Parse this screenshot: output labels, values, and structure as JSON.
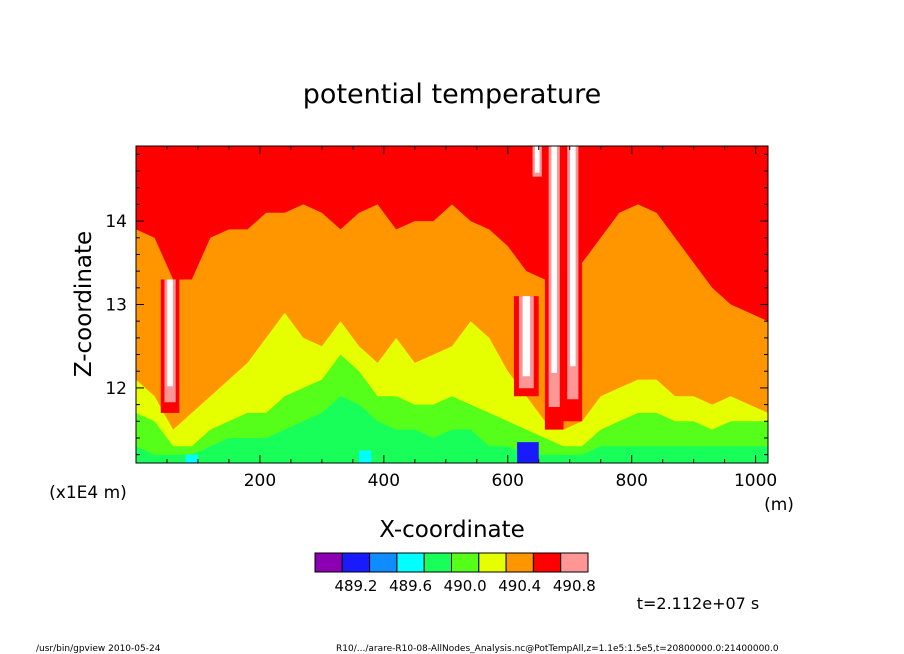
{
  "chart_data": {
    "type": "heatmap",
    "title": "potential temperature",
    "xlabel": "X-coordinate",
    "ylabel": "Z-coordinate",
    "x_unit": "(m)",
    "y_unit": "(x1E4 m)",
    "xlim": [
      0,
      1020
    ],
    "ylim": [
      11.1,
      14.9
    ],
    "x_ticks": [
      200,
      400,
      600,
      800,
      1000
    ],
    "y_ticks": [
      12,
      13,
      14
    ],
    "colorbar": {
      "colors": [
        "#8c00b4",
        "#1a1aff",
        "#0f8cff",
        "#00ffff",
        "#19ff5a",
        "#55ff19",
        "#e6ff00",
        "#ff9600",
        "#ff0000",
        "#ff9696"
      ],
      "tick_labels": [
        "489.2",
        "489.6",
        "490.0",
        "490.4",
        "490.8"
      ],
      "tick_values": [
        489.2,
        489.6,
        490.0,
        490.4,
        490.8
      ]
    },
    "boundary_samples_x": [
      0,
      30,
      60,
      90,
      120,
      150,
      180,
      210,
      240,
      270,
      300,
      330,
      360,
      390,
      420,
      450,
      480,
      510,
      540,
      570,
      600,
      630,
      660,
      690,
      720,
      750,
      780,
      810,
      840,
      870,
      900,
      930,
      960,
      990,
      1020
    ],
    "red_to_orange_z": [
      13.9,
      13.8,
      13.3,
      13.3,
      13.8,
      13.9,
      13.9,
      14.1,
      14.1,
      14.2,
      14.1,
      13.9,
      14.1,
      14.2,
      13.9,
      14.0,
      14.0,
      14.2,
      14.0,
      13.9,
      13.7,
      13.4,
      13.3,
      13.3,
      13.5,
      13.8,
      14.1,
      14.2,
      14.1,
      13.8,
      13.5,
      13.2,
      13.0,
      12.9,
      12.8
    ],
    "orange_to_yellow_z": [
      12.1,
      11.9,
      11.5,
      11.7,
      11.9,
      12.1,
      12.3,
      12.6,
      12.9,
      12.6,
      12.5,
      12.8,
      12.5,
      12.3,
      12.6,
      12.3,
      12.4,
      12.5,
      12.8,
      12.6,
      12.2,
      11.9,
      11.6,
      11.5,
      11.6,
      11.9,
      12.0,
      12.1,
      12.1,
      11.9,
      11.9,
      11.8,
      11.9,
      11.8,
      11.7
    ],
    "yellow_to_green_z": [
      11.7,
      11.6,
      11.3,
      11.3,
      11.5,
      11.6,
      11.7,
      11.7,
      11.9,
      12.0,
      12.1,
      12.4,
      12.2,
      11.9,
      11.9,
      11.8,
      11.8,
      11.9,
      11.8,
      11.7,
      11.6,
      11.5,
      11.4,
      11.3,
      11.3,
      11.5,
      11.6,
      11.7,
      11.7,
      11.6,
      11.6,
      11.5,
      11.6,
      11.6,
      11.6
    ],
    "green_to_lightgreen_z": [
      11.3,
      11.2,
      11.2,
      11.2,
      11.3,
      11.4,
      11.4,
      11.4,
      11.5,
      11.6,
      11.7,
      11.9,
      11.8,
      11.6,
      11.5,
      11.5,
      11.4,
      11.5,
      11.5,
      11.3,
      11.3,
      11.2,
      11.2,
      11.2,
      11.2,
      11.3,
      11.3,
      11.3,
      11.3,
      11.3,
      11.3,
      11.3,
      11.3,
      11.3,
      11.3
    ],
    "warm_columns": [
      {
        "x": [
          40,
          70
        ],
        "z": [
          11.7,
          13.3
        ]
      },
      {
        "x": [
          610,
          650
        ],
        "z": [
          11.9,
          13.1
        ]
      },
      {
        "x": [
          660,
          690
        ],
        "z": [
          11.5,
          14.9
        ]
      },
      {
        "x": [
          690,
          720
        ],
        "z": [
          11.6,
          14.9
        ]
      },
      {
        "x": [
          635,
          660
        ],
        "z": [
          14.5,
          14.9
        ]
      }
    ],
    "cool_spots": [
      {
        "x": [
          615,
          650
        ],
        "z": [
          11.1,
          11.35
        ],
        "color_index": 1
      },
      {
        "x": [
          360,
          380
        ],
        "z": [
          11.1,
          11.25
        ],
        "color_index": 3
      },
      {
        "x": [
          80,
          100
        ],
        "z": [
          11.1,
          11.2
        ],
        "color_index": 3
      }
    ]
  },
  "annotations": {
    "time": "t=2.112e+07 s",
    "footer_left": "/usr/bin/gpview  2010-05-24",
    "footer_right": "R10/.../arare-R10-08-AllNodes_Analysis.nc@PotTempAll,z=1.1e5:1.5e5,t=20800000.0:21400000.0"
  }
}
